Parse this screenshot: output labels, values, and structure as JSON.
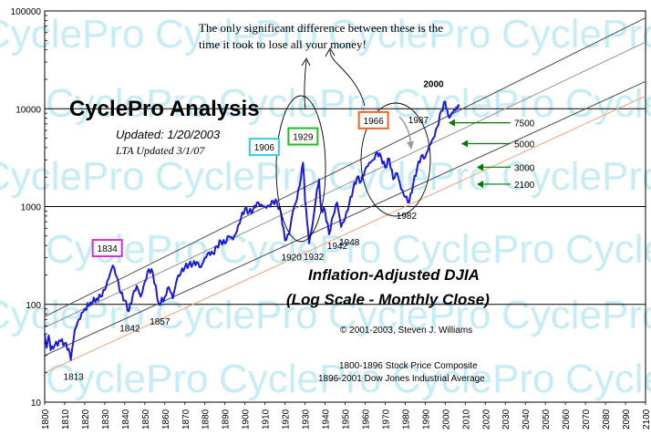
{
  "chart_data": {
    "type": "line",
    "scale": "log",
    "title": "Inflation-Adjusted DJIA",
    "subtitle": "(Log Scale - Monthly Close)",
    "brand": "CyclePro Analysis",
    "updated": "Updated: 1/20/2003",
    "lta_updated": "LTA Updated 3/1/07",
    "annotation": [
      "The only significant difference between these is the",
      "time it took to lose all your money!"
    ],
    "copyright": "© 2001-2003, Steven J. Williams",
    "source_notes": [
      "1800-1896 Stock Price Composite",
      "1896-2001 Dow Jones Industrial Average"
    ],
    "watermark": "CyclePro",
    "ylim": [
      10,
      100000
    ],
    "y_ticks": [
      {
        "v": 10,
        "label": "10"
      },
      {
        "v": 100,
        "label": "100"
      },
      {
        "v": 1000,
        "label": "1000"
      },
      {
        "v": 10000,
        "label": "10000"
      },
      {
        "v": 100000,
        "label": "100000"
      }
    ],
    "xlim": [
      1800,
      2100
    ],
    "x_ticks": [
      1800,
      1810,
      1820,
      1830,
      1840,
      1850,
      1860,
      1870,
      1880,
      1890,
      1900,
      1910,
      1920,
      1930,
      1940,
      1950,
      1960,
      1970,
      1980,
      1990,
      2000,
      2010,
      2020,
      2030,
      2040,
      2050,
      2060,
      2070,
      2080,
      2090,
      2100
    ],
    "series": [
      {
        "name": "Inflation-Adjusted DJIA",
        "color": "#1a1adc",
        "x": [
          1800,
          1801,
          1802,
          1803,
          1805,
          1808,
          1810,
          1812,
          1813,
          1815,
          1817,
          1820,
          1823,
          1826,
          1828,
          1830,
          1832,
          1834,
          1836,
          1838,
          1840,
          1842,
          1844,
          1846,
          1848,
          1850,
          1852,
          1854,
          1857,
          1860,
          1862,
          1864,
          1866,
          1868,
          1870,
          1872,
          1874,
          1876,
          1878,
          1880,
          1882,
          1884,
          1886,
          1888,
          1890,
          1892,
          1894,
          1896,
          1898,
          1900,
          1902,
          1904,
          1906,
          1908,
          1910,
          1912,
          1914,
          1916,
          1918,
          1920,
          1922,
          1924,
          1926,
          1928,
          1929,
          1930,
          1931,
          1932,
          1934,
          1936,
          1937,
          1938,
          1940,
          1942,
          1944,
          1946,
          1948,
          1950,
          1952,
          1954,
          1956,
          1958,
          1960,
          1962,
          1964,
          1966,
          1968,
          1970,
          1972,
          1974,
          1976,
          1978,
          1980,
          1982,
          1984,
          1986,
          1988,
          1990,
          1992,
          1994,
          1996,
          1998,
          2000,
          2001,
          2002,
          2003,
          2004,
          2005,
          2006,
          2007
        ],
        "values": [
          50,
          36,
          48,
          34,
          38,
          42,
          40,
          35,
          27,
          55,
          70,
          90,
          105,
          115,
          120,
          140,
          185,
          250,
          190,
          130,
          110,
          85,
          125,
          155,
          120,
          170,
          230,
          210,
          100,
          120,
          150,
          115,
          180,
          210,
          240,
          255,
          260,
          270,
          240,
          300,
          340,
          330,
          390,
          440,
          420,
          500,
          460,
          560,
          760,
          950,
          880,
          920,
          1100,
          1050,
          1000,
          1010,
          1140,
          1100,
          850,
          450,
          520,
          900,
          1200,
          2000,
          2800,
          1150,
          700,
          420,
          720,
          1500,
          1900,
          950,
          900,
          520,
          800,
          1100,
          620,
          750,
          1050,
          1500,
          2000,
          1800,
          2400,
          2800,
          3000,
          3600,
          3200,
          2500,
          3100,
          1900,
          2200,
          1500,
          1250,
          1100,
          1700,
          2500,
          3300,
          3200,
          4200,
          5000,
          6500,
          9500,
          11800,
          9800,
          8100,
          8800,
          9300,
          9600,
          9900,
          10500
        ]
      }
    ],
    "channel_lines": [
      {
        "name": "Upper channel",
        "color": "#4a4a4a",
        "x": [
          1800,
          2100
        ],
        "values": [
          75,
          85000
        ]
      },
      {
        "name": "Upper-mid channel",
        "color": "#909090",
        "x": [
          1800,
          2100
        ],
        "values": [
          58,
          48000
        ]
      },
      {
        "name": "Lower-mid channel",
        "color": "#4a4a4a",
        "x": [
          1800,
          2100
        ],
        "values": [
          30,
          19000
        ]
      },
      {
        "name": "Lower channel",
        "color": "#f4a07a",
        "x": [
          1800,
          2100
        ],
        "values": [
          20,
          13500
        ]
      }
    ],
    "year_labels": [
      {
        "year": 1813,
        "value": 27,
        "label": "1813"
      },
      {
        "year": 1842,
        "value": 85,
        "label": "1842"
      },
      {
        "year": 1857,
        "value": 100,
        "label": "1857"
      },
      {
        "year": 1920,
        "value": 450,
        "label": "1920"
      },
      {
        "year": 1932,
        "value": 420,
        "label": "1932"
      },
      {
        "year": 1942,
        "value": 520,
        "label": "1942"
      },
      {
        "year": 1948,
        "value": 620,
        "label": "1948"
      },
      {
        "year": 1982,
        "value": 1100,
        "label": "1982"
      },
      {
        "year": 1987,
        "value": 3300,
        "label": "1987"
      },
      {
        "year": 2000,
        "value": 11800,
        "label": "2000"
      }
    ],
    "boxed_labels": [
      {
        "label": "1834",
        "year": 1834,
        "value": 250,
        "color": "#cc33cc"
      },
      {
        "label": "1906",
        "year": 1906,
        "value": 1100,
        "color": "#33ccee"
      },
      {
        "label": "1929",
        "year": 1929,
        "value": 2800,
        "color": "#22bb22"
      },
      {
        "label": "1966",
        "year": 1966,
        "value": 3600,
        "color": "#ee6622"
      }
    ],
    "targets": [
      {
        "label": "7500",
        "value": 7500
      },
      {
        "label": "5000",
        "value": 5000
      },
      {
        "label": "3000",
        "value": 3000
      },
      {
        "label": "2100",
        "value": 2100
      }
    ]
  }
}
